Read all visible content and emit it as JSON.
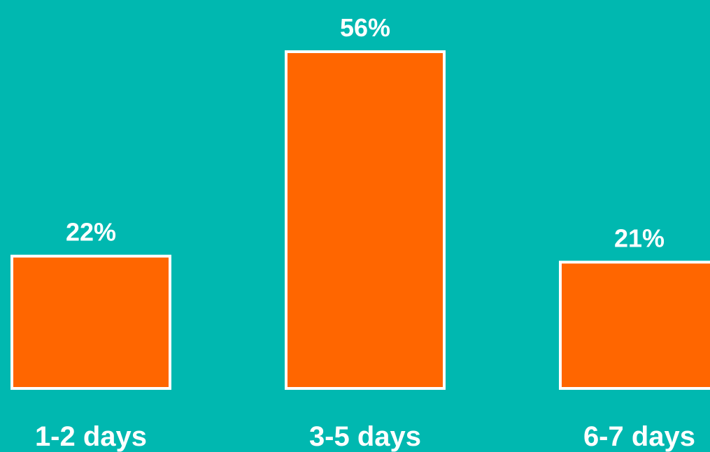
{
  "colors": {
    "background": "#00B8B0",
    "bar_fill": "#FF6600",
    "bar_border": "#FFFFFF",
    "text": "#FFFFFF"
  },
  "chart_data": {
    "type": "bar",
    "categories": [
      "1-2 days",
      "3-5 days",
      "6-7 days"
    ],
    "values": [
      22,
      56,
      21
    ],
    "data_labels": [
      "22%",
      "56%",
      "21%"
    ],
    "value_unit": "%",
    "ylim": [
      0,
      56
    ],
    "grid": false,
    "legend": "none",
    "title": "",
    "xlabel": "",
    "ylabel": ""
  }
}
